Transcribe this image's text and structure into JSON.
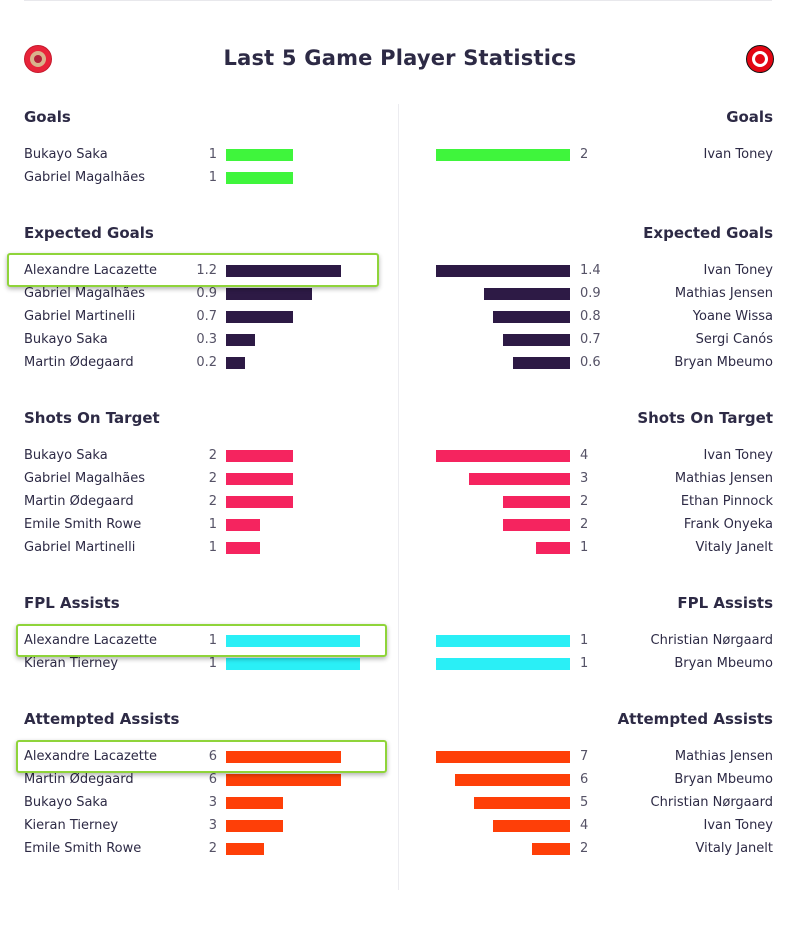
{
  "header": {
    "title": "Last 5 Game Player Statistics",
    "home_crest_icon": "arsenal-crest-icon",
    "away_crest_icon": "brentford-crest-icon"
  },
  "chart_data": [
    {
      "type": "bar",
      "title": "Goals",
      "color": "#3ff53c",
      "max": 2,
      "home": [
        {
          "player": "Bukayo Saka",
          "value": 1
        },
        {
          "player": "Gabriel Magalhães",
          "value": 1
        }
      ],
      "away": [
        {
          "player": "Ivan Toney",
          "value": 2
        }
      ]
    },
    {
      "type": "bar",
      "title": "Expected Goals",
      "color": "#2d1a45",
      "max": 1.4,
      "home": [
        {
          "player": "Alexandre Lacazette",
          "value": 1.2
        },
        {
          "player": "Gabriel Magalhães",
          "value": 0.9
        },
        {
          "player": "Gabriel Martinelli",
          "value": 0.7
        },
        {
          "player": "Bukayo Saka",
          "value": 0.3
        },
        {
          "player": "Martin Ødegaard",
          "value": 0.2
        }
      ],
      "away": [
        {
          "player": "Ivan Toney",
          "value": 1.4
        },
        {
          "player": "Mathias Jensen",
          "value": 0.9
        },
        {
          "player": "Yoane Wissa",
          "value": 0.8
        },
        {
          "player": "Sergi Canós",
          "value": 0.7
        },
        {
          "player": "Bryan Mbeumo",
          "value": 0.6
        }
      ]
    },
    {
      "type": "bar",
      "title": "Shots On Target",
      "color": "#f5245f",
      "max": 4,
      "home": [
        {
          "player": "Bukayo Saka",
          "value": 2
        },
        {
          "player": "Gabriel Magalhães",
          "value": 2
        },
        {
          "player": "Martin Ødegaard",
          "value": 2
        },
        {
          "player": "Emile Smith Rowe",
          "value": 1
        },
        {
          "player": "Gabriel Martinelli",
          "value": 1
        }
      ],
      "away": [
        {
          "player": "Ivan Toney",
          "value": 4
        },
        {
          "player": "Mathias Jensen",
          "value": 3
        },
        {
          "player": "Ethan Pinnock",
          "value": 2
        },
        {
          "player": "Frank Onyeka",
          "value": 2
        },
        {
          "player": "Vitaly Janelt",
          "value": 1
        }
      ]
    },
    {
      "type": "bar",
      "title": "FPL Assists",
      "color": "#2aeff6",
      "max": 1,
      "home": [
        {
          "player": "Alexandre Lacazette",
          "value": 1
        },
        {
          "player": "Kieran Tierney",
          "value": 1
        }
      ],
      "away": [
        {
          "player": "Christian Nørgaard",
          "value": 1
        },
        {
          "player": "Bryan Mbeumo",
          "value": 1
        }
      ]
    },
    {
      "type": "bar",
      "title": "Attempted Assists",
      "color": "#fe3f08",
      "max": 7,
      "home": [
        {
          "player": "Alexandre Lacazette",
          "value": 6
        },
        {
          "player": "Martin Ødegaard",
          "value": 6
        },
        {
          "player": "Bukayo Saka",
          "value": 3
        },
        {
          "player": "Kieran Tierney",
          "value": 3
        },
        {
          "player": "Emile Smith Rowe",
          "value": 2
        }
      ],
      "away": [
        {
          "player": "Mathias Jensen",
          "value": 7
        },
        {
          "player": "Bryan Mbeumo",
          "value": 6
        },
        {
          "player": "Christian Nørgaard",
          "value": 5
        },
        {
          "player": "Ivan Toney",
          "value": 4
        },
        {
          "player": "Vitaly Janelt",
          "value": 2
        }
      ]
    }
  ]
}
